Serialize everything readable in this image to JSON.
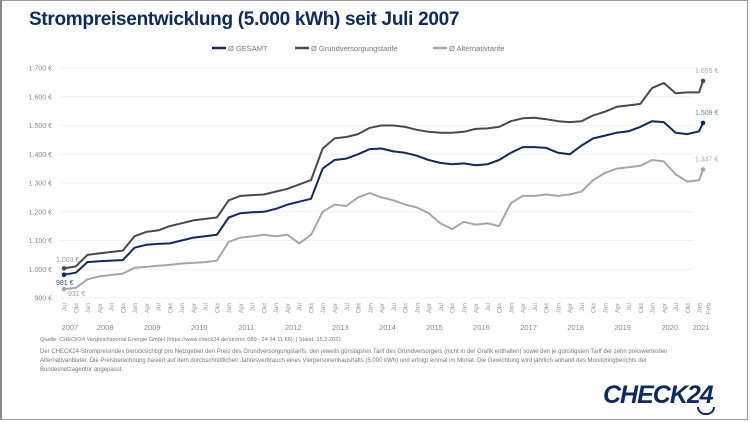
{
  "title": "Strompreisentwicklung (5.000 kWh) seit Juli 2007",
  "source": "Quelle: CHECK24 Vergleichsportal Energie GmbH (https://www.check24.de/strom/; 089 - 24 24 11 66); | Stand: 15.2.2021",
  "description": "Der CHECK24-Strompreisindex berücksichtigt pro Netzgebiet den Preis des Grundversorgungstarifs, den jeweils günstigsten Tarif des Grundversorgers (nicht in der Grafik enthalten) sowie den je günstigsten Tarif der zehn preiswertesten Alternativanbieter. Die Preisberechnung basiert auf dem durchschnittlichen Jahresverbrauch eines Vierpersonenhaushalts (5.000 kWh) und erfolgt einmal im Monat. Die Gewichtung wird jährlich anhand des Monitoringberichts der Bundesnetzagentur angepasst.",
  "logo": "CHECK24",
  "chart_data": {
    "type": "line",
    "title": "Strompreisentwicklung (5.000 kWh) seit Juli 2007",
    "ylim": [
      900,
      1700
    ],
    "yticks": [
      900,
      1000,
      1100,
      1200,
      1300,
      1400,
      1500,
      1600,
      1700
    ],
    "ytick_labels": [
      "900 €",
      "1.000 €",
      "1.100 €",
      "1.200 €",
      "1.300 €",
      "1.400 €",
      "1.500 €",
      "1.600 €",
      "1.700 €"
    ],
    "grid": true,
    "legend": "top-center",
    "x_labels": [
      "Jul",
      "Okt",
      "Jan",
      "Apr",
      "Jul",
      "Okt",
      "Jan",
      "Apr",
      "Jul",
      "Okt",
      "Jan",
      "Apr",
      "Jul",
      "Okt",
      "Jan",
      "Apr",
      "Jul",
      "Okt",
      "Jan",
      "Apr",
      "Jul",
      "Okt",
      "Jan",
      "Apr",
      "Jul",
      "Okt",
      "Jan",
      "Apr",
      "Jul",
      "Okt",
      "Jan",
      "Apr",
      "Jul",
      "Okt",
      "Jan",
      "Apr",
      "Jul",
      "Okt",
      "Jan",
      "Apr",
      "Jul",
      "Okt",
      "Jan",
      "Apr",
      "Jul",
      "Okt",
      "Jan",
      "Apr",
      "Jul",
      "Okt",
      "Jan",
      "Apr",
      "Jul",
      "Okt",
      "Jan",
      "Feb"
    ],
    "x_months": [
      0,
      3,
      6,
      9,
      12,
      15,
      18,
      21,
      24,
      27,
      30,
      33,
      36,
      39,
      42,
      45,
      48,
      51,
      54,
      57,
      60,
      63,
      66,
      69,
      72,
      75,
      78,
      81,
      84,
      87,
      90,
      93,
      96,
      99,
      102,
      105,
      108,
      111,
      114,
      117,
      120,
      123,
      126,
      129,
      132,
      135,
      138,
      141,
      144,
      147,
      150,
      153,
      156,
      159,
      162,
      163
    ],
    "years": [
      {
        "label": "2007",
        "month": 1.5
      },
      {
        "label": "2008",
        "month": 10.5
      },
      {
        "label": "2009",
        "month": 22.5
      },
      {
        "label": "2010",
        "month": 34.5
      },
      {
        "label": "2011",
        "month": 46.5
      },
      {
        "label": "2012",
        "month": 58.5
      },
      {
        "label": "2013",
        "month": 70.5
      },
      {
        "label": "2014",
        "month": 82.5
      },
      {
        "label": "2015",
        "month": 94.5
      },
      {
        "label": "2016",
        "month": 106.5
      },
      {
        "label": "2017",
        "month": 118.5
      },
      {
        "label": "2018",
        "month": 130.5
      },
      {
        "label": "2019",
        "month": 142.5
      },
      {
        "label": "2020",
        "month": 154.5
      },
      {
        "label": "2021",
        "month": 162.5
      }
    ],
    "series": [
      {
        "name": "Ø GESAMT",
        "color": "#0d2b63",
        "start_label": "981 €",
        "end_label": "1.509 €",
        "values": [
          981,
          988,
          1025,
          1028,
          1030,
          1032,
          1075,
          1085,
          1088,
          1090,
          1100,
          1110,
          1115,
          1120,
          1180,
          1195,
          1198,
          1200,
          1210,
          1225,
          1235,
          1245,
          1350,
          1380,
          1385,
          1400,
          1418,
          1420,
          1410,
          1405,
          1395,
          1380,
          1370,
          1365,
          1368,
          1362,
          1365,
          1380,
          1405,
          1425,
          1425,
          1422,
          1405,
          1400,
          1430,
          1455,
          1465,
          1475,
          1480,
          1495,
          1515,
          1512,
          1475,
          1470,
          1480,
          1509
        ]
      },
      {
        "name": "Ø Grundversorgungstarife",
        "color": "#4a4a4a",
        "start_label": "1.003 €",
        "end_label": "1.655 €",
        "values": [
          1003,
          1010,
          1050,
          1055,
          1060,
          1065,
          1115,
          1130,
          1135,
          1150,
          1160,
          1170,
          1175,
          1180,
          1240,
          1255,
          1258,
          1260,
          1270,
          1280,
          1295,
          1310,
          1420,
          1455,
          1460,
          1470,
          1492,
          1500,
          1500,
          1495,
          1485,
          1478,
          1475,
          1475,
          1478,
          1488,
          1490,
          1495,
          1515,
          1525,
          1527,
          1522,
          1515,
          1512,
          1515,
          1535,
          1548,
          1565,
          1570,
          1575,
          1630,
          1648,
          1612,
          1615,
          1615,
          1655
        ]
      },
      {
        "name": "Ø Alternativtarife",
        "color": "#a6a6a6",
        "start_label": "931 €",
        "end_label": "1.347 €",
        "values": [
          931,
          935,
          965,
          975,
          980,
          985,
          1005,
          1008,
          1012,
          1015,
          1020,
          1022,
          1025,
          1030,
          1095,
          1110,
          1115,
          1120,
          1115,
          1120,
          1090,
          1120,
          1200,
          1225,
          1220,
          1250,
          1265,
          1250,
          1240,
          1225,
          1215,
          1195,
          1160,
          1140,
          1165,
          1155,
          1160,
          1150,
          1230,
          1255,
          1255,
          1260,
          1255,
          1260,
          1270,
          1310,
          1335,
          1350,
          1355,
          1360,
          1380,
          1375,
          1330,
          1305,
          1310,
          1347
        ]
      }
    ]
  }
}
